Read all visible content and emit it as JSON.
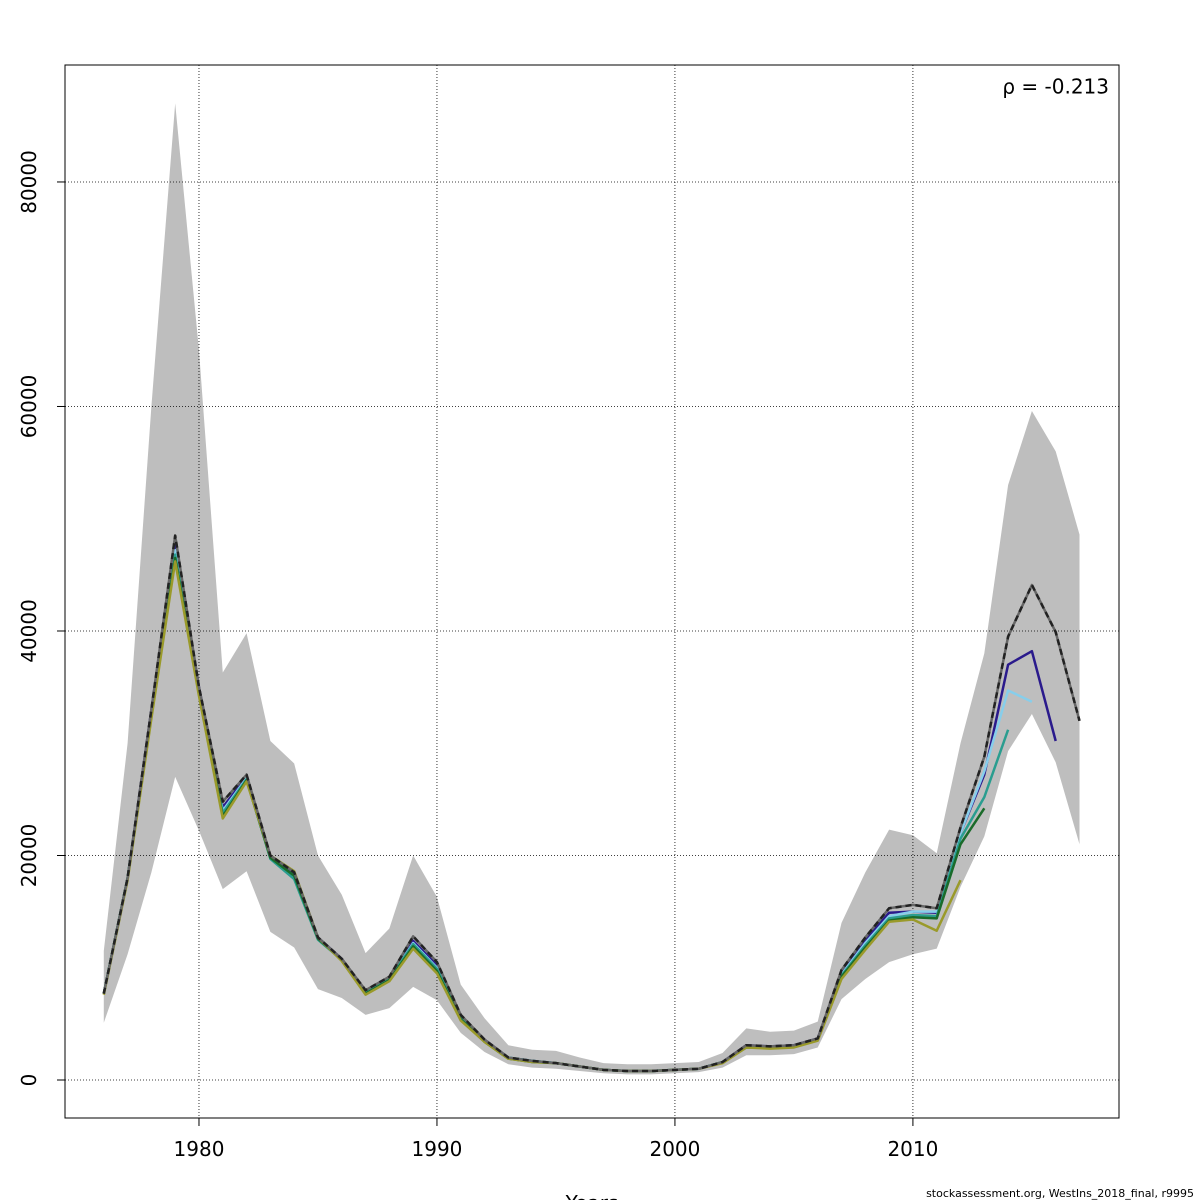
{
  "chart_data": {
    "type": "line",
    "annotation": "ρ = -0.213",
    "xlabel": "Years",
    "footer": "stockassessment.org, WestIns_2018_final, r9995",
    "xlim": [
      1974.37,
      2018.66
    ],
    "ylim": [
      -3385,
      90420
    ],
    "xticks": [
      1980,
      1990,
      2000,
      2010
    ],
    "yticks": [
      0,
      20000,
      40000,
      60000,
      80000
    ],
    "grid": true,
    "x": [
      1976,
      1977,
      1978,
      1979,
      1980,
      1981,
      1982,
      1983,
      1984,
      1985,
      1986,
      1987,
      1988,
      1989,
      1990,
      1991,
      1992,
      1993,
      1994,
      1995,
      1996,
      1997,
      1998,
      1999,
      2000,
      2001,
      2002,
      2003,
      2004,
      2005,
      2006,
      2007,
      2008,
      2009,
      2010,
      2011,
      2012,
      2013,
      2014,
      2015,
      2016,
      2017
    ],
    "band": {
      "color": "#bebebe",
      "upper": [
        11500,
        30000,
        60000,
        87000,
        65000,
        36300,
        39800,
        30200,
        28200,
        20000,
        16500,
        11300,
        13500,
        20000,
        16300,
        8500,
        5500,
        3100,
        2700,
        2600,
        2000,
        1500,
        1400,
        1400,
        1500,
        1600,
        2400,
        4600,
        4300,
        4400,
        5200,
        14000,
        18500,
        22300,
        21800,
        20200,
        30000,
        38000,
        53000,
        59600,
        56000,
        48600
      ],
      "lower": [
        5100,
        11200,
        18500,
        27000,
        22200,
        17000,
        18600,
        13200,
        11800,
        8100,
        7300,
        5800,
        6400,
        8300,
        7100,
        4200,
        2500,
        1400,
        1100,
        1000,
        800,
        600,
        500,
        500,
        600,
        700,
        1100,
        2200,
        2200,
        2300,
        2900,
        7200,
        9000,
        10500,
        11200,
        11700,
        17200,
        21700,
        29300,
        32600,
        28300,
        21000
      ]
    },
    "series": [
      {
        "color": "#2a1a8c",
        "values": [
          7700,
          18000,
          33000,
          47800,
          35000,
          24300,
          27000,
          19900,
          18300,
          12700,
          10800,
          7900,
          9100,
          12400,
          10200,
          5700,
          3600,
          2000,
          1700,
          1500,
          1200,
          900,
          800,
          800,
          900,
          1000,
          1600,
          3100,
          3000,
          3100,
          3700,
          9600,
          12400,
          14900,
          15000,
          14900,
          22000,
          27200,
          37000,
          38200,
          30200,
          null
        ]
      },
      {
        "color": "#87ceeb",
        "values": [
          7700,
          18000,
          32800,
          47200,
          34800,
          24000,
          26900,
          19800,
          18000,
          12600,
          10700,
          7900,
          9000,
          12200,
          10000,
          5600,
          3500,
          2000,
          1700,
          1500,
          1200,
          900,
          800,
          800,
          900,
          1000,
          1600,
          3000,
          2900,
          3000,
          3600,
          9400,
          12200,
          14600,
          15000,
          15000,
          22000,
          27500,
          34700,
          33700,
          null,
          null
        ]
      },
      {
        "color": "#2a9d8f",
        "values": [
          7700,
          18000,
          32600,
          46800,
          34600,
          23800,
          26800,
          19700,
          17900,
          12500,
          10700,
          7800,
          9000,
          12100,
          9900,
          5500,
          3500,
          2000,
          1700,
          1500,
          1200,
          900,
          800,
          800,
          900,
          1000,
          1600,
          3000,
          2900,
          3000,
          3600,
          9300,
          12000,
          14400,
          14700,
          14600,
          21500,
          25200,
          31200,
          null,
          null,
          null
        ]
      },
      {
        "color": "#1a6b2a",
        "values": [
          7700,
          18000,
          32400,
          46500,
          34400,
          23500,
          26700,
          19800,
          18200,
          12600,
          10700,
          7700,
          8900,
          11900,
          9700,
          5400,
          3400,
          1900,
          1600,
          1500,
          1200,
          900,
          800,
          800,
          900,
          1000,
          1600,
          2900,
          2900,
          3000,
          3600,
          9200,
          11800,
          14200,
          14500,
          14400,
          21000,
          24200,
          null,
          null,
          null,
          null
        ]
      },
      {
        "color": "#9a9a2a",
        "values": [
          7600,
          17800,
          32200,
          46200,
          34200,
          23300,
          26600,
          20000,
          18600,
          12700,
          10600,
          7600,
          8800,
          11700,
          9500,
          5300,
          3400,
          1900,
          1600,
          1500,
          1200,
          900,
          800,
          800,
          900,
          1000,
          1500,
          2900,
          2800,
          2900,
          3500,
          9000,
          11600,
          14100,
          14300,
          13300,
          17800,
          null,
          null,
          null,
          null,
          null
        ]
      },
      {
        "color": "#222222",
        "dashed": true,
        "values": [
          7700,
          18000,
          33000,
          48500,
          35000,
          24800,
          27200,
          20000,
          18500,
          12700,
          10800,
          8000,
          9200,
          12800,
          10500,
          5800,
          3600,
          2000,
          1700,
          1500,
          1200,
          900,
          800,
          800,
          900,
          1000,
          1600,
          3100,
          3000,
          3100,
          3700,
          9800,
          12700,
          15300,
          15600,
          15300,
          22500,
          28800,
          39500,
          44100,
          39900,
          32000
        ]
      }
    ]
  }
}
